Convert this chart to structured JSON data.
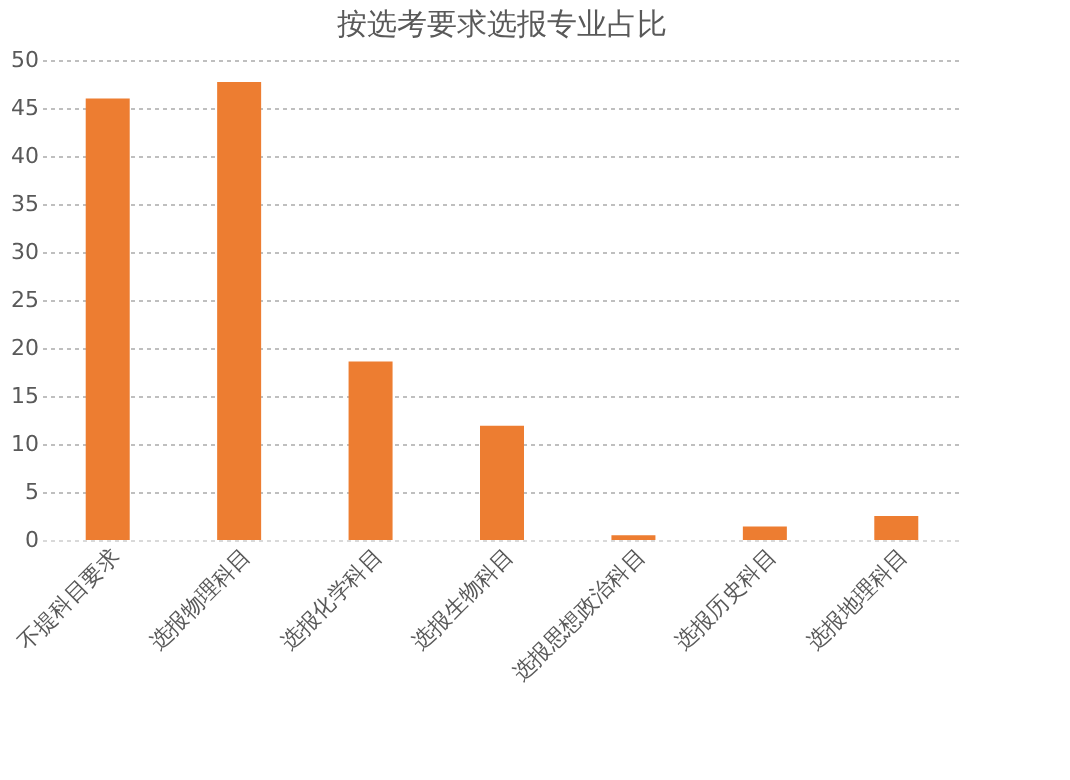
{
  "chart_data": {
    "type": "bar",
    "title": "按选考要求选报专业占比",
    "categories": [
      "不提科目要求",
      "选报物理科目",
      "选报化学科目",
      "选报生物科目",
      "选报思想政治科目",
      "选报历史科目",
      "选报地理科目"
    ],
    "values": [
      46.0,
      47.7,
      18.6,
      11.9,
      0.5,
      1.4,
      2.5
    ],
    "color": "#ed7d31",
    "ylim": [
      0,
      50
    ],
    "yticks": [
      0,
      5,
      10,
      15,
      20,
      25,
      30,
      35,
      40,
      45,
      50
    ],
    "grid": "y"
  }
}
